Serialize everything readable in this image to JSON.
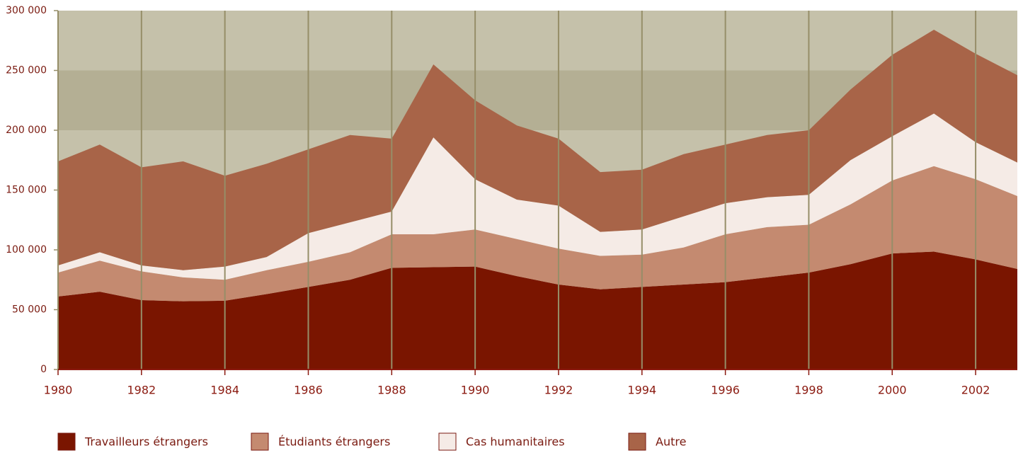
{
  "chart_data": {
    "type": "stacked_area",
    "x": [
      1980,
      1981,
      1982,
      1983,
      1984,
      1985,
      1986,
      1987,
      1988,
      1989,
      1990,
      1991,
      1992,
      1993,
      1994,
      1995,
      1996,
      1997,
      1998,
      1999,
      2000,
      2001,
      2002,
      2003
    ],
    "xlim": [
      1980,
      2003
    ],
    "xticks": [
      1980,
      1982,
      1984,
      1986,
      1988,
      1990,
      1992,
      1994,
      1996,
      1998,
      2000,
      2002
    ],
    "ylim": [
      0,
      300000
    ],
    "yticks": [
      0,
      {
        "value": 50000,
        "label": "50 000"
      },
      {
        "value": 100000,
        "label": "100 000"
      },
      {
        "value": 150000,
        "label": "150 000"
      },
      {
        "value": 200000,
        "label": "200 000"
      },
      {
        "value": 250000,
        "label": "250 000"
      },
      {
        "value": 300000,
        "label": "300 000"
      }
    ],
    "highlight_band": [
      200000,
      250000
    ],
    "grid": true,
    "legend": "bottom",
    "series": [
      {
        "name": "Travailleurs étrangers",
        "color": "#7a1500",
        "values": [
          61000,
          65000,
          58000,
          57000,
          57500,
          63000,
          69000,
          75000,
          85000,
          85500,
          86000,
          78000,
          71000,
          67000,
          69000,
          71000,
          73000,
          77000,
          81000,
          88000,
          97000,
          98500,
          92000,
          84000
        ]
      },
      {
        "name": "Étudiants étrangers",
        "color": "#c48a70",
        "values": [
          20000,
          26000,
          24000,
          20000,
          17500,
          20000,
          21000,
          23000,
          28000,
          27500,
          31000,
          31000,
          30000,
          28000,
          27000,
          31000,
          40000,
          42000,
          40000,
          50000,
          61000,
          71500,
          67000,
          61000
        ]
      },
      {
        "name": "Cas humanitaires",
        "color": "#f5ebe6",
        "values": [
          6000,
          7000,
          5000,
          6000,
          11000,
          11000,
          24000,
          25000,
          19000,
          81000,
          42000,
          33000,
          36000,
          20000,
          21000,
          26000,
          26000,
          25000,
          25000,
          37000,
          37000,
          44000,
          31000,
          28000
        ]
      },
      {
        "name": "Autre",
        "color": "#a86448",
        "values": [
          87000,
          90000,
          82000,
          91000,
          76000,
          78000,
          70000,
          73000,
          61000,
          61000,
          66000,
          62000,
          56000,
          50000,
          50000,
          52000,
          49000,
          52000,
          54000,
          59000,
          68000,
          70000,
          74000,
          73000
        ]
      }
    ]
  }
}
